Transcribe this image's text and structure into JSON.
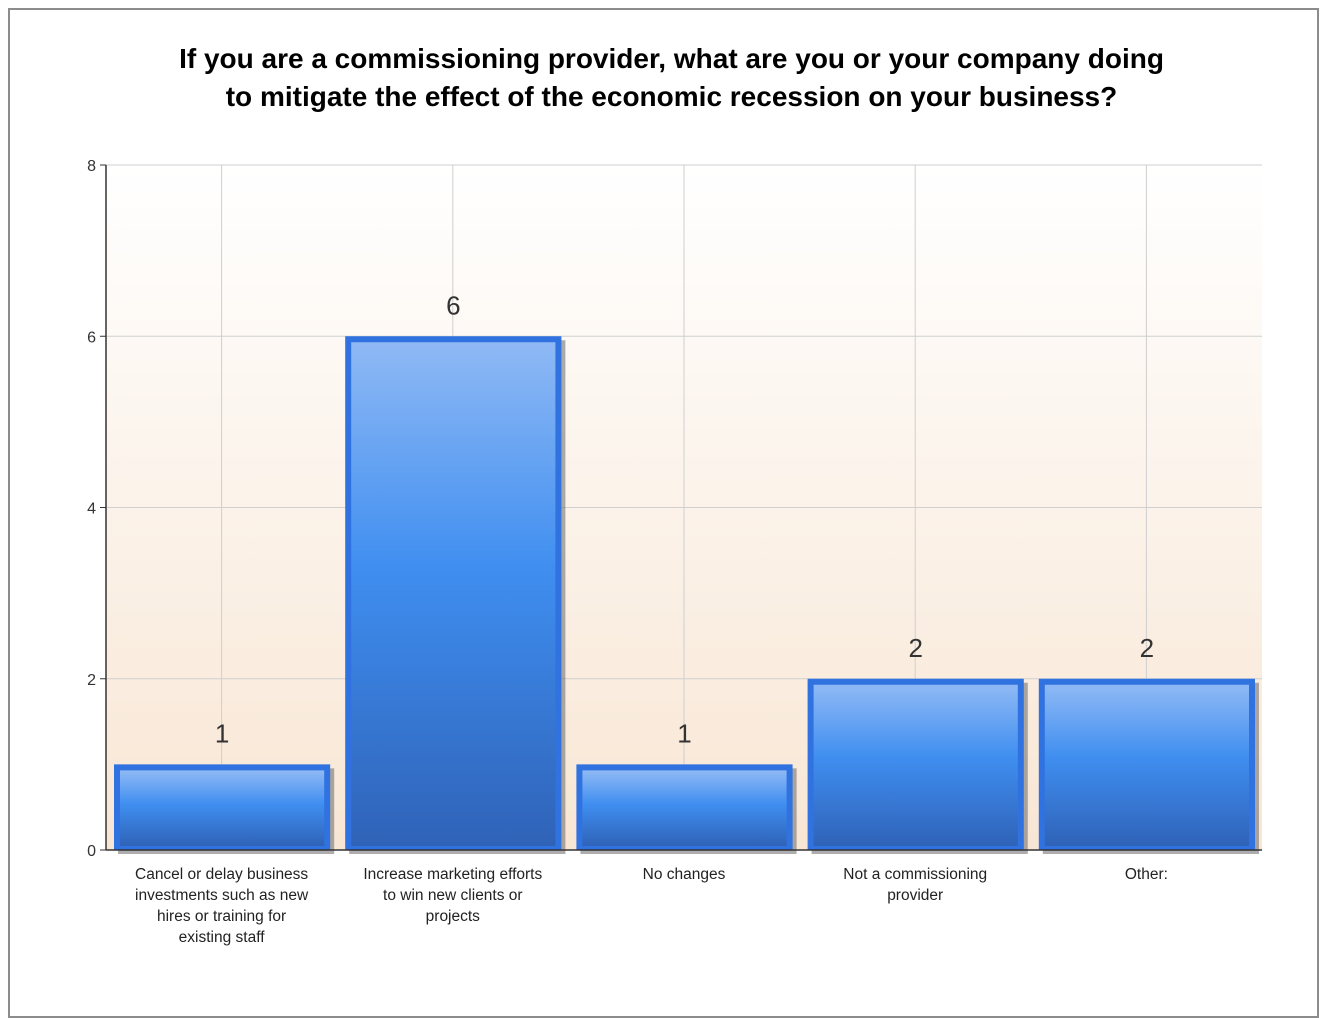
{
  "title_lines": [
    "If you are a commissioning provider, what are you or your company doing",
    "to mitigate the effect of the economic recession on your business?"
  ],
  "colors": {
    "bar_light": "#8fb9f5",
    "bar_mid": "#3f8ef0",
    "bar_dark": "#2f63b8",
    "bar_border": "#2f72e0",
    "grid": "#cfcfcf",
    "bg_top": "#ffffff",
    "bg_bottom": "#f8e6d4"
  },
  "chart_data": {
    "type": "bar",
    "title": "If you are a commissioning provider, what are you or your company doing to mitigate the effect of the economic recession on your business?",
    "categories": [
      [
        "Cancel or delay business",
        "investments such as new",
        "hires or training for",
        "existing staff"
      ],
      [
        "Increase marketing efforts",
        "to win new clients or",
        "projects"
      ],
      [
        "No changes"
      ],
      [
        "Not a commissioning",
        "provider"
      ],
      [
        "Other:"
      ]
    ],
    "values": [
      1,
      6,
      1,
      2,
      2
    ],
    "data_labels": [
      "1",
      "6",
      "1",
      "2",
      "2"
    ],
    "ylim": [
      0,
      8
    ],
    "yticks": [
      0,
      2,
      4,
      6,
      8
    ],
    "grid": true
  }
}
